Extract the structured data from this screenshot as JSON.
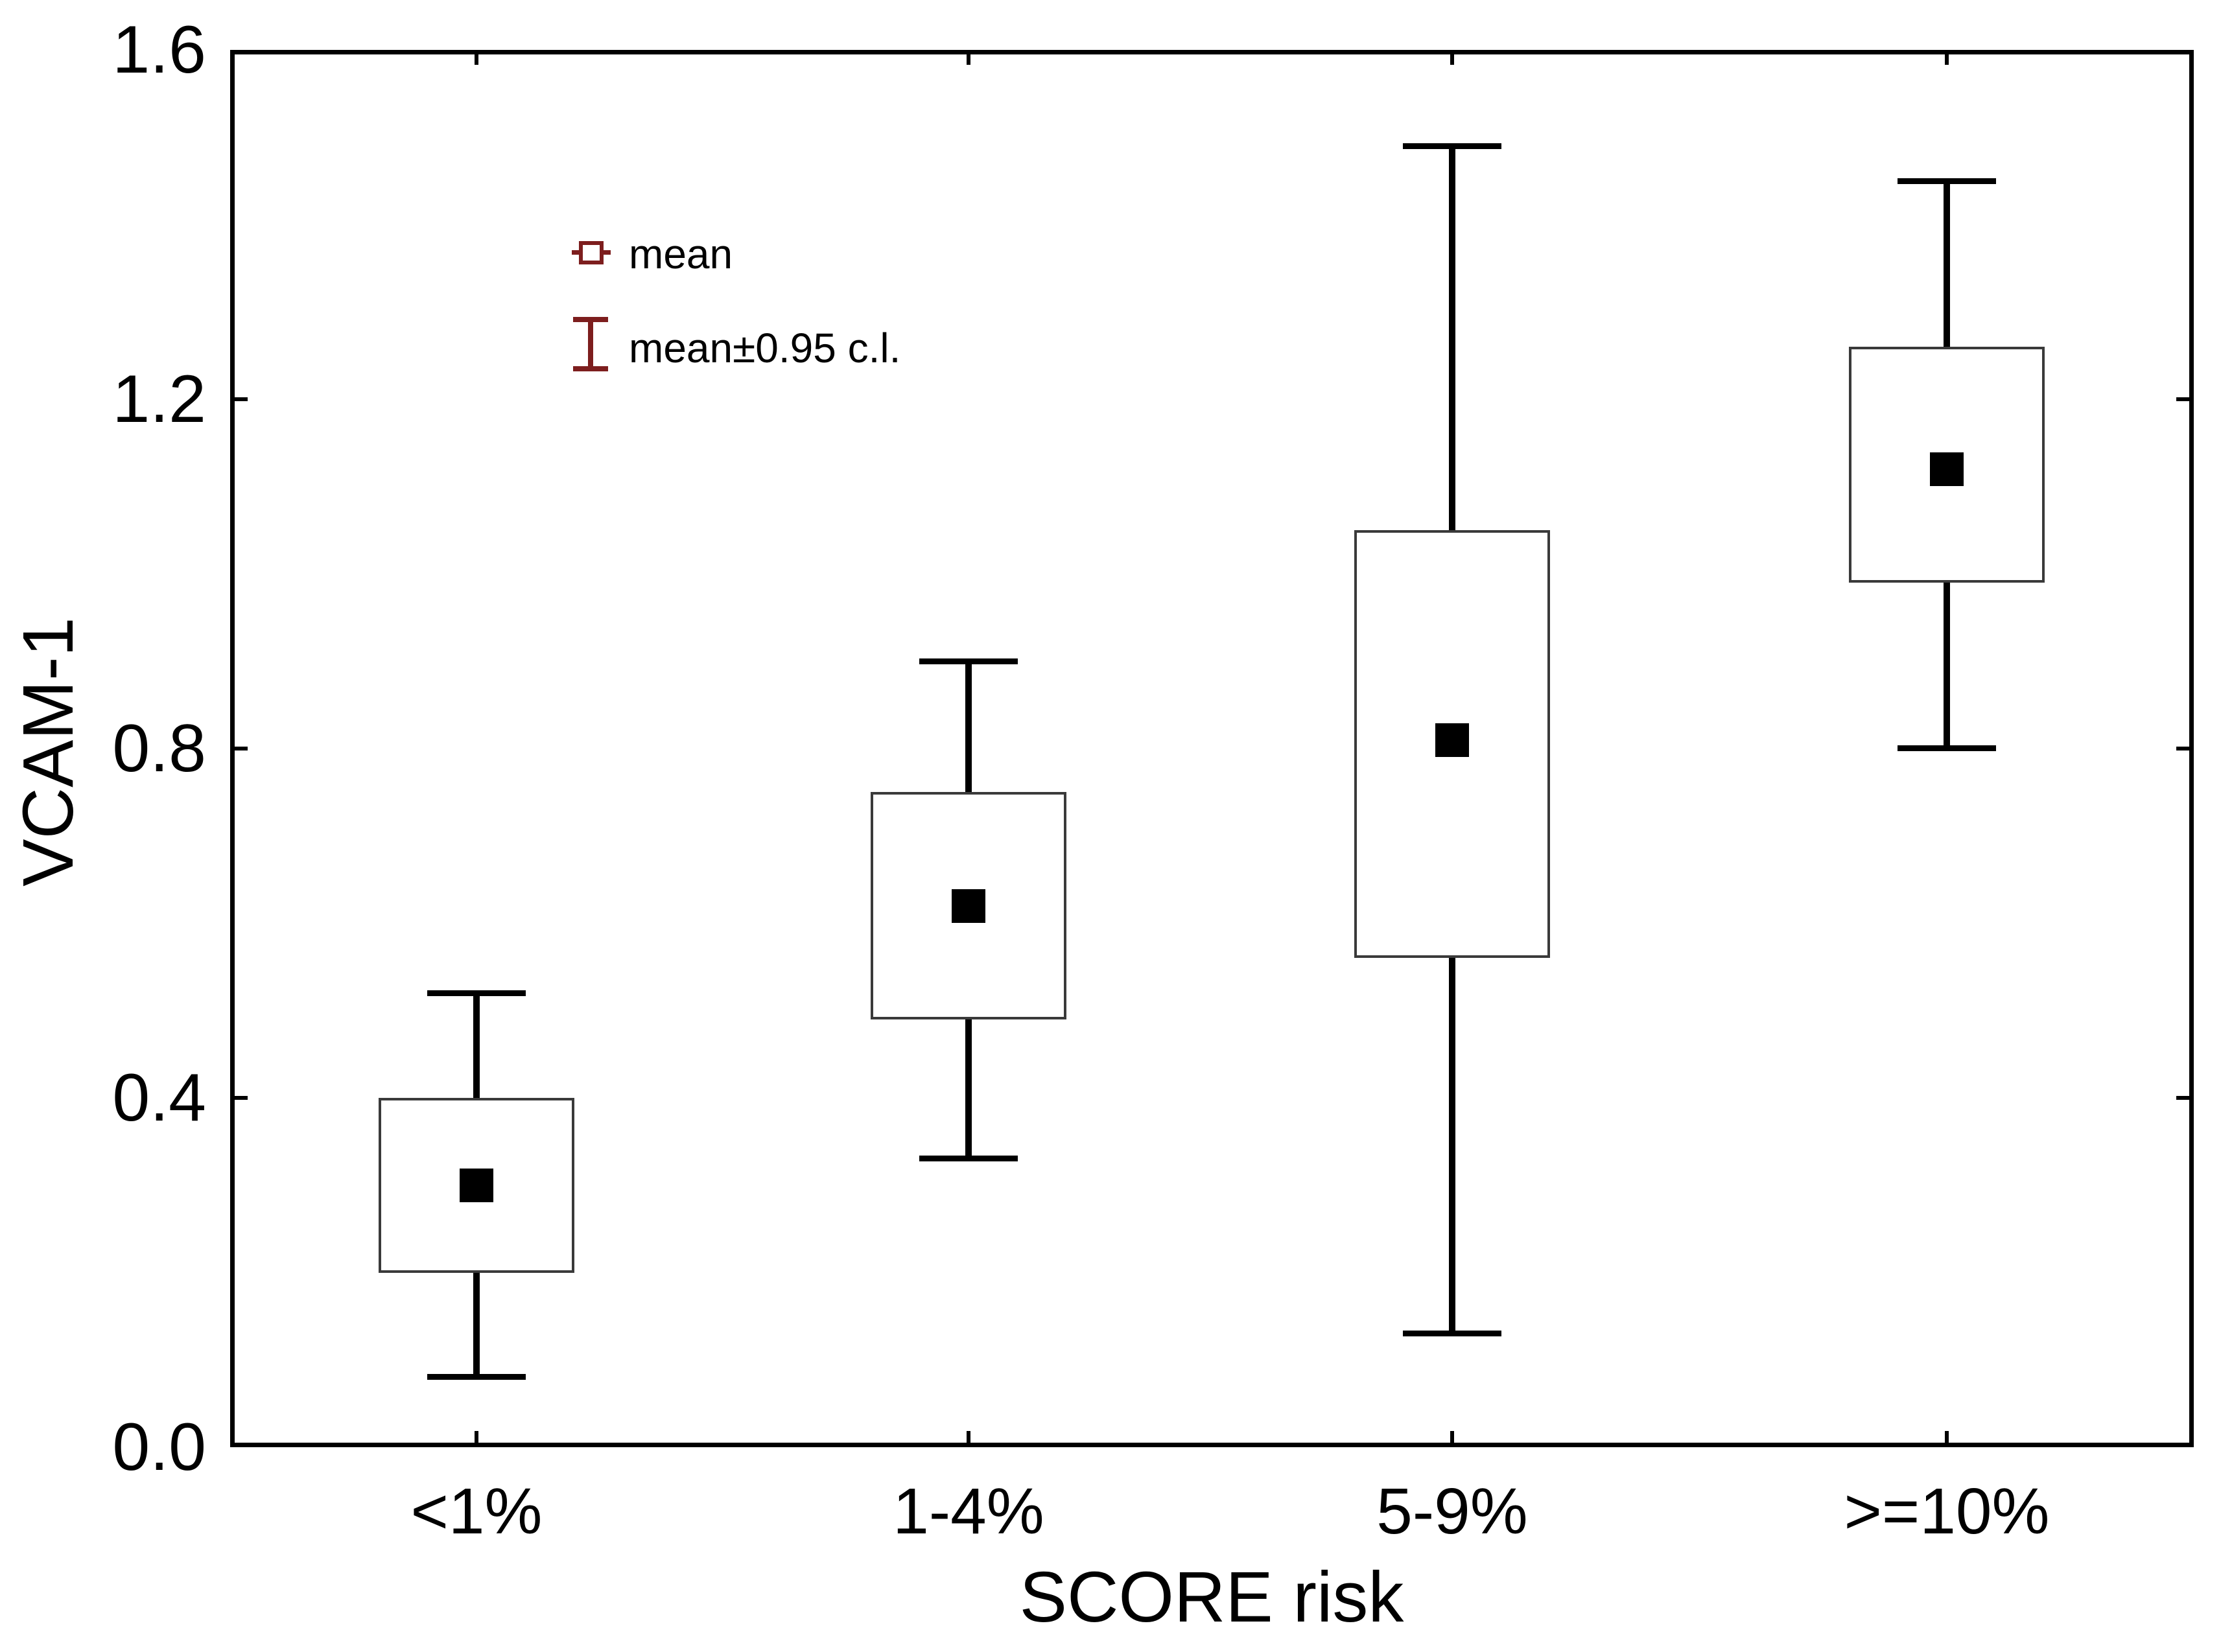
{
  "chart_data": {
    "type": "box",
    "title": "",
    "xlabel": "SCORE risk",
    "ylabel": "VCAM-1",
    "categories": [
      "<1%",
      "1-4%",
      "5-9%",
      ">=10%"
    ],
    "series": [
      {
        "category": "<1%",
        "mean": 0.3,
        "box_low": 0.2,
        "box_high": 0.4,
        "whisker_low": 0.08,
        "whisker_high": 0.52
      },
      {
        "category": "1-4%",
        "mean": 0.62,
        "box_low": 0.49,
        "box_high": 0.75,
        "whisker_low": 0.33,
        "whisker_high": 0.9
      },
      {
        "category": "5-9%",
        "mean": 0.81,
        "box_low": 0.56,
        "box_high": 1.05,
        "whisker_low": 0.13,
        "whisker_high": 1.49
      },
      {
        "category": ">=10%",
        "mean": 1.12,
        "box_low": 0.99,
        "box_high": 1.26,
        "whisker_low": 0.8,
        "whisker_high": 1.45
      }
    ],
    "ylim": [
      0.0,
      1.6
    ],
    "y_tick_values": [
      0.0,
      0.4,
      0.8,
      1.2,
      1.6
    ],
    "y_tick_labels": [
      "0.0",
      "0.4",
      "0.8",
      "1.2",
      "1.6"
    ],
    "grid": false,
    "legend_position": "top-left-inside",
    "legend": [
      {
        "icon": "mean-square-icon",
        "label": "mean"
      },
      {
        "icon": "ci-errorbar-icon",
        "label": "mean±0.95 c.l."
      }
    ]
  },
  "colors": {
    "background": "#ffffff",
    "axis": "#000000",
    "box_border": "#3a3a3a",
    "marker": "#000000",
    "legend_symbol": "#7d1e1e",
    "text": "#000000"
  }
}
